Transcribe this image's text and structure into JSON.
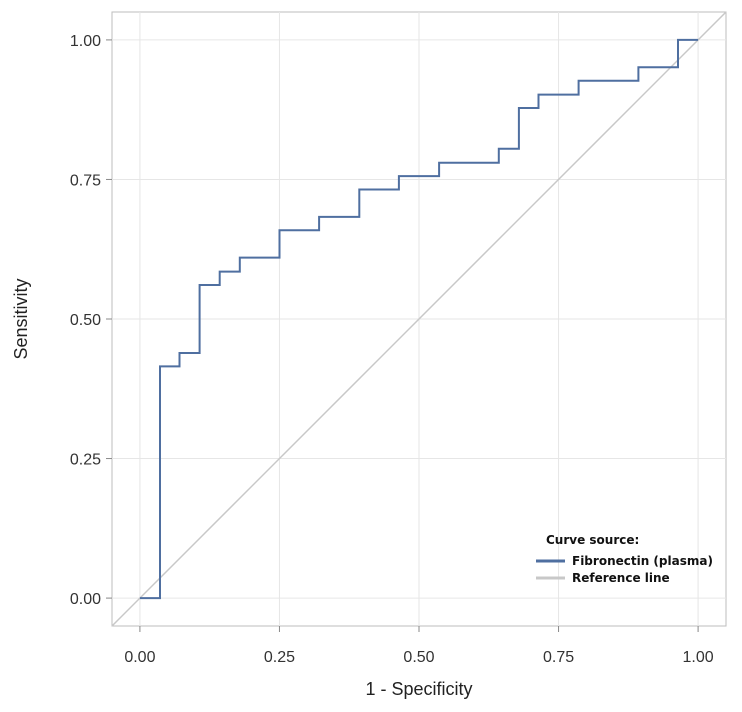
{
  "chart_data": {
    "type": "line",
    "title": "",
    "xlabel": "1 - Specificity",
    "ylabel": "Sensitivity",
    "xlim": [
      -0.05,
      1.05
    ],
    "ylim": [
      -0.05,
      1.05
    ],
    "x_ticks": [
      "0.00",
      "0.25",
      "0.50",
      "0.75",
      "1.00"
    ],
    "y_ticks": [
      "0.00",
      "0.25",
      "0.50",
      "0.75",
      "1.00"
    ],
    "grid": true,
    "legend": {
      "title": "Curve source:",
      "position": "bottom-right",
      "entries": [
        "Fibronectin (plasma)",
        "Reference line"
      ]
    },
    "series": [
      {
        "name": "Fibronectin (plasma)",
        "color": "#4f6fa0",
        "x": [
          0.0,
          0.036,
          0.036,
          0.071,
          0.071,
          0.107,
          0.107,
          0.143,
          0.143,
          0.179,
          0.179,
          0.25,
          0.25,
          0.321,
          0.321,
          0.393,
          0.393,
          0.464,
          0.464,
          0.536,
          0.536,
          0.643,
          0.643,
          0.679,
          0.679,
          0.714,
          0.714,
          0.786,
          0.786,
          0.893,
          0.893,
          0.964,
          0.964,
          1.0
        ],
        "y": [
          0.0,
          0.0,
          0.415,
          0.415,
          0.439,
          0.439,
          0.561,
          0.561,
          0.585,
          0.585,
          0.61,
          0.61,
          0.659,
          0.659,
          0.683,
          0.683,
          0.732,
          0.732,
          0.756,
          0.756,
          0.78,
          0.78,
          0.805,
          0.805,
          0.878,
          0.878,
          0.902,
          0.902,
          0.927,
          0.927,
          0.951,
          0.951,
          1.0,
          1.0
        ]
      },
      {
        "name": "Reference line",
        "color": "#c8c8c8",
        "x": [
          -0.05,
          1.05
        ],
        "y": [
          -0.05,
          1.05
        ]
      }
    ]
  }
}
